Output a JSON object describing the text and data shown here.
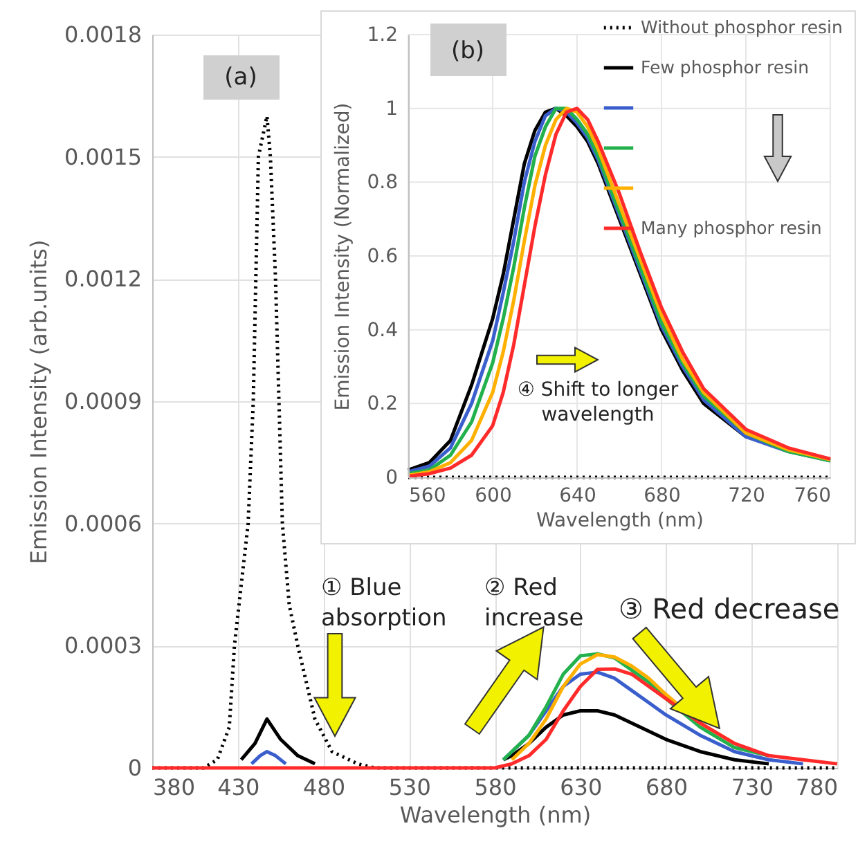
{
  "chart_data": [
    {
      "type": "line",
      "xlabel": "Wavelength (nm)",
      "ylabel": "Emission Intensity (arb.units)",
      "xlim": [
        380,
        780
      ],
      "xticks": [
        380,
        430,
        480,
        530,
        580,
        630,
        680,
        730,
        780
      ],
      "ylim": [
        0,
        0.0018
      ],
      "yticks": [
        0,
        0.0003,
        0.0006,
        0.0009,
        0.0012,
        0.0015,
        0.0018
      ],
      "grid": true,
      "legend": "top right",
      "annotations": [
        "(a)",
        "① Blue\nabsorption",
        "② Red\nincrease",
        "③ Red decrease"
      ],
      "series": [
        {
          "color": "#000000",
          "line_style": "dotted",
          "x": [
            380,
            410,
            418,
            425,
            428,
            432,
            436,
            439,
            442,
            447,
            449,
            452,
            454,
            456,
            460,
            465,
            475,
            485,
            500,
            510,
            780
          ],
          "values": [
            0,
            0,
            2e-05,
            0.0001,
            0.0003,
            0.00045,
            0.0006,
            0.0009,
            0.0015,
            0.0016,
            0.0015,
            0.0012,
            0.0009,
            0.0006,
            0.0004,
            0.0003,
            0.00012,
            4e-05,
            1e-05,
            0,
            0
          ]
        },
        {
          "color": "#000000",
          "line_style": "solid",
          "x": [
            432,
            440,
            447,
            455,
            465,
            475,
            485,
            585,
            590,
            600,
            610,
            620,
            630,
            640,
            650,
            660,
            670,
            680,
            700,
            720,
            740
          ],
          "values": [
            2e-05,
            6e-05,
            0.00012,
            7e-05,
            3e-05,
            1e-05,
            null,
            2e-05,
            3e-05,
            6e-05,
            0.0001,
            0.00013,
            0.00014,
            0.00014,
            0.00013,
            0.00011,
            9e-05,
            7e-05,
            4e-05,
            2e-05,
            1e-05
          ]
        },
        {
          "color": "#3a5fcd",
          "line_style": "solid",
          "x": [
            438,
            443,
            447,
            452,
            458,
            470,
            585,
            590,
            600,
            610,
            620,
            630,
            640,
            650,
            660,
            670,
            680,
            700,
            720,
            740,
            760
          ],
          "values": [
            1e-05,
            3e-05,
            4e-05,
            3e-05,
            1e-05,
            null,
            2e-05,
            4e-05,
            8e-05,
            0.00014,
            0.0002,
            0.00023,
            0.000235,
            0.00022,
            0.00019,
            0.00016,
            0.00013,
            8e-05,
            4e-05,
            2e-05,
            1e-05
          ]
        },
        {
          "color": "#22b14c",
          "line_style": "solid",
          "x": [
            585,
            590,
            600,
            610,
            620,
            630,
            640,
            650,
            660,
            670,
            680,
            700,
            720,
            740
          ],
          "values": [
            2e-05,
            4e-05,
            8e-05,
            0.00015,
            0.00023,
            0.000275,
            0.00028,
            0.00027,
            0.00024,
            0.00021,
            0.00017,
            0.0001,
            5e-05,
            3e-05
          ]
        },
        {
          "color": "#ffb000",
          "line_style": "solid",
          "x": [
            590,
            600,
            610,
            620,
            630,
            640,
            650,
            660,
            670,
            680,
            700,
            720
          ],
          "values": [
            2e-05,
            6e-05,
            0.00012,
            0.0002,
            0.000255,
            0.000278,
            0.000272,
            0.00025,
            0.00022,
            0.00018,
            0.00011,
            6e-05
          ]
        },
        {
          "color": "#ff2a2a",
          "line_style": "solid",
          "x": [
            380,
            420,
            460,
            500,
            540,
            580,
            590,
            600,
            610,
            620,
            630,
            640,
            650,
            660,
            670,
            680,
            700,
            720,
            740,
            760,
            780
          ],
          "values": [
            0,
            0,
            0,
            0,
            0,
            0,
            1e-05,
            3e-05,
            7e-05,
            0.00014,
            0.0002,
            0.000242,
            0.000243,
            0.00023,
            0.0002,
            0.00017,
            0.00011,
            6e-05,
            3e-05,
            2e-05,
            1e-05
          ]
        }
      ]
    },
    {
      "type": "line",
      "xlabel": "Wavelength (nm)",
      "ylabel": "Emission Intensity (Normalized)",
      "xlim": [
        560,
        760
      ],
      "xticks": [
        560,
        600,
        640,
        680,
        720,
        760
      ],
      "ylim": [
        0,
        1.2
      ],
      "yticks": [
        0,
        0.2,
        0.4,
        0.6,
        0.8,
        1,
        1.2
      ],
      "grid": true,
      "legend": "top right",
      "annotations": [
        "(b)",
        "④ Shift to longer\nwavelength"
      ],
      "x": [
        560,
        570,
        580,
        590,
        600,
        605,
        610,
        615,
        620,
        625,
        630,
        635,
        640,
        645,
        650,
        660,
        670,
        680,
        690,
        700,
        720,
        740,
        760
      ],
      "series": [
        {
          "name": "Without phosphor resin",
          "color": "#000000",
          "line_style": "dotted",
          "x": [
            560,
            760
          ],
          "values": [
            0,
            0
          ]
        },
        {
          "name": "Few phosphor resin",
          "color": "#000000",
          "line_style": "solid",
          "values": [
            0.02,
            0.04,
            0.1,
            0.25,
            0.43,
            0.55,
            0.7,
            0.85,
            0.94,
            0.99,
            1.0,
            0.98,
            0.95,
            0.91,
            0.85,
            0.7,
            0.55,
            0.4,
            0.29,
            0.2,
            0.11,
            null,
            null
          ]
        },
        {
          "color": "#3a5fcd",
          "line_style": "solid",
          "values": [
            0.015,
            0.03,
            0.08,
            0.2,
            0.37,
            0.5,
            0.64,
            0.8,
            0.91,
            0.98,
            1.0,
            0.99,
            0.96,
            0.92,
            0.86,
            0.71,
            0.56,
            0.41,
            0.3,
            0.21,
            0.11,
            0.07,
            0.045
          ]
        },
        {
          "color": "#22b14c",
          "line_style": "solid",
          "values": [
            0.01,
            0.02,
            0.06,
            0.15,
            0.31,
            0.43,
            0.57,
            0.73,
            0.87,
            0.95,
            1.0,
            1.0,
            0.97,
            0.93,
            0.87,
            0.72,
            0.57,
            0.42,
            0.31,
            0.22,
            0.12,
            0.07,
            0.045
          ]
        },
        {
          "color": "#ffb000",
          "line_style": "solid",
          "values": [
            0.005,
            0.015,
            0.04,
            0.1,
            0.23,
            0.34,
            0.48,
            0.64,
            0.79,
            0.9,
            0.97,
            1.0,
            0.99,
            0.95,
            0.89,
            0.74,
            0.59,
            0.44,
            0.32,
            0.23,
            0.12,
            0.075,
            0.048
          ]
        },
        {
          "name": "Many phosphor resin",
          "color": "#ff2a2a",
          "line_style": "solid",
          "values": [
            0.003,
            0.01,
            0.025,
            0.06,
            0.14,
            0.23,
            0.36,
            0.52,
            0.68,
            0.82,
            0.93,
            0.99,
            1.0,
            0.97,
            0.91,
            0.77,
            0.61,
            0.46,
            0.34,
            0.24,
            0.13,
            0.08,
            0.05
          ]
        }
      ]
    }
  ]
}
